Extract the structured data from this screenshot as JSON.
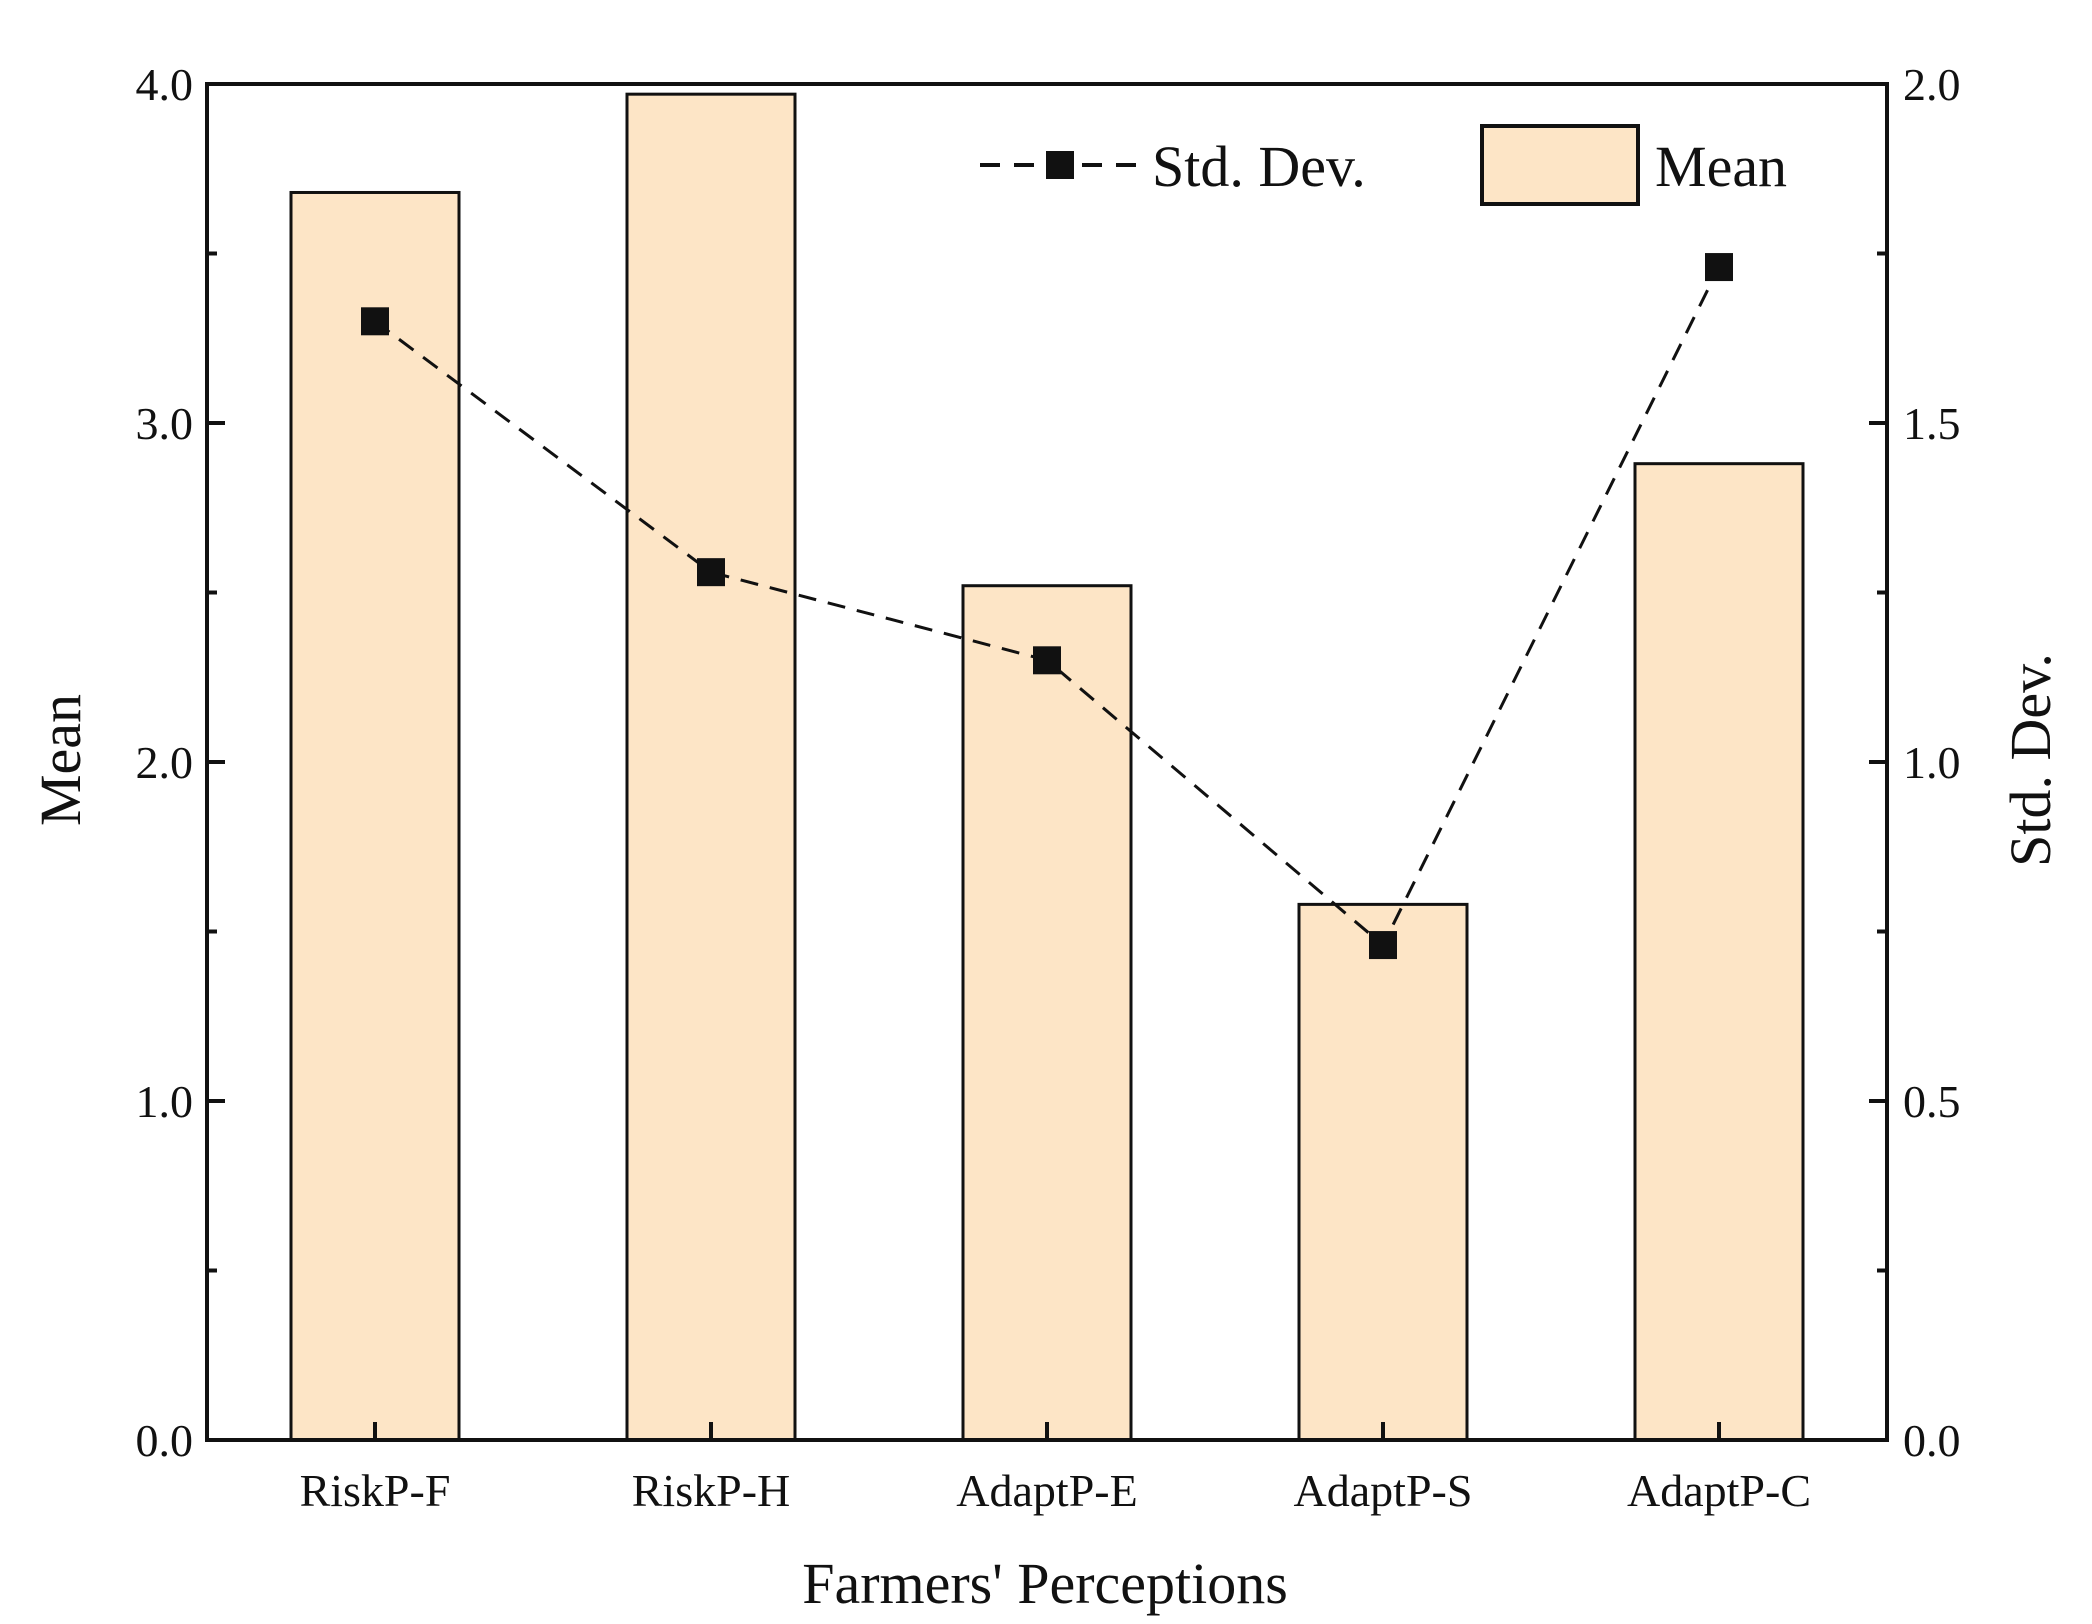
{
  "chart_data": {
    "type": "bar",
    "title": "",
    "xlabel": "Farmers' Perceptions",
    "ylabel": "Mean",
    "y2label": "Std. Dev.",
    "categories": [
      "RiskP-F",
      "RiskP-H",
      "AdaptP-E",
      "AdaptP-S",
      "AdaptP-C"
    ],
    "ylim": [
      0,
      4
    ],
    "y2lim": [
      0,
      2
    ],
    "yticks": [
      "0.0",
      "1.0",
      "2.0",
      "3.0",
      "4.0"
    ],
    "y2ticks": [
      "0.0",
      "0.5",
      "1.0",
      "1.5",
      "2.0"
    ],
    "series": [
      {
        "name": "Mean",
        "kind": "bar",
        "axis": "left",
        "values": [
          3.68,
          3.97,
          2.52,
          1.58,
          2.88
        ]
      },
      {
        "name": "Std. Dev.",
        "kind": "line",
        "axis": "right",
        "style": "dashed",
        "marker": "square",
        "values": [
          1.65,
          1.28,
          1.15,
          0.73,
          1.73
        ]
      }
    ],
    "legend": {
      "position": "top-right",
      "entries": [
        "Std. Dev.",
        "Mean"
      ]
    },
    "grid": false
  },
  "colors": {
    "bar_fill": "#FDE5C6",
    "bar_stroke": "#111111",
    "line": "#111111",
    "axis": "#111111"
  }
}
